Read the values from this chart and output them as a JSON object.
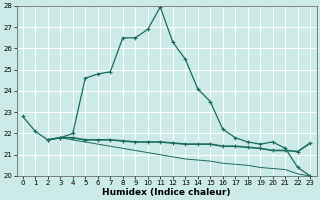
{
  "xlabel": "Humidex (Indice chaleur)",
  "xlim": [
    -0.5,
    23.5
  ],
  "ylim": [
    20,
    28
  ],
  "yticks": [
    20,
    21,
    22,
    23,
    24,
    25,
    26,
    27,
    28
  ],
  "xticks": [
    0,
    1,
    2,
    3,
    4,
    5,
    6,
    7,
    8,
    9,
    10,
    11,
    12,
    13,
    14,
    15,
    16,
    17,
    18,
    19,
    20,
    21,
    22,
    23
  ],
  "background_color": "#cceae8",
  "grid_color": "#ffffff",
  "line_color": "#1a6b5e",
  "line1_x": [
    0,
    1,
    2,
    3,
    4,
    5,
    6,
    7,
    8,
    9,
    10,
    11,
    12,
    13,
    14,
    15,
    16,
    17,
    18,
    19,
    20,
    21,
    22,
    23
  ],
  "line1_y": [
    22.8,
    22.1,
    21.7,
    21.8,
    22.0,
    24.6,
    24.8,
    24.9,
    26.5,
    26.5,
    26.9,
    27.95,
    26.3,
    25.5,
    24.1,
    23.5,
    22.2,
    21.8,
    21.6,
    21.5,
    21.6,
    21.3,
    20.4,
    20.0
  ],
  "line2_x": [
    2,
    3,
    4,
    5,
    6,
    7,
    8,
    9,
    10,
    11,
    12,
    13,
    14,
    15,
    16,
    17,
    18,
    19,
    20,
    21,
    22,
    23
  ],
  "line2_y": [
    21.7,
    21.8,
    21.8,
    21.7,
    21.7,
    21.7,
    21.65,
    21.6,
    21.6,
    21.6,
    21.55,
    21.5,
    21.5,
    21.5,
    21.4,
    21.4,
    21.35,
    21.3,
    21.2,
    21.2,
    21.15,
    21.55
  ],
  "line3_x": [
    2,
    3,
    4,
    5,
    6,
    7,
    8,
    9,
    10,
    11,
    12,
    13,
    14,
    15,
    16,
    17,
    18,
    19,
    20,
    21,
    22,
    23
  ],
  "line3_y": [
    21.7,
    21.8,
    21.7,
    21.6,
    21.5,
    21.4,
    21.3,
    21.2,
    21.1,
    21.0,
    20.9,
    20.8,
    20.75,
    20.7,
    20.6,
    20.55,
    20.5,
    20.4,
    20.35,
    20.3,
    20.1,
    20.0
  ]
}
